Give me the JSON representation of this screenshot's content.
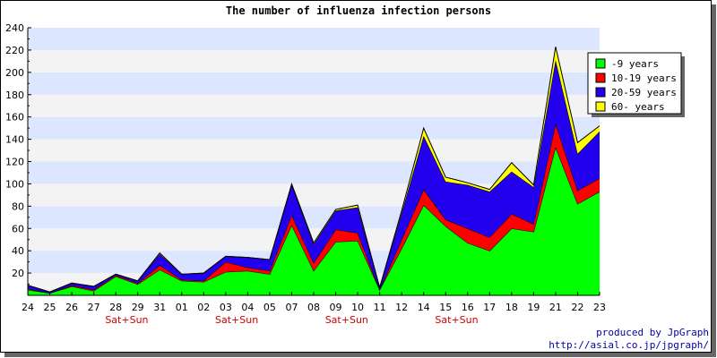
{
  "chart_data": {
    "type": "area",
    "stacked": true,
    "title": "The number of influenza infection persons",
    "categories": [
      "24",
      "25",
      "26",
      "27",
      "28",
      "29",
      "31",
      "01",
      "02",
      "03",
      "04",
      "05",
      "07",
      "08",
      "09",
      "10",
      "11",
      "12",
      "14",
      "15",
      "16",
      "17",
      "18",
      "19",
      "21",
      "22",
      "23"
    ],
    "weekend_label": "Sat+Sun",
    "weekend_positions": [
      5,
      10,
      15,
      20
    ],
    "ylim": [
      0,
      240
    ],
    "yticks": [
      20,
      40,
      60,
      80,
      100,
      120,
      140,
      160,
      180,
      200,
      220,
      240
    ],
    "grid": "horizontal bands",
    "legend_position": "top-right",
    "series": [
      {
        "name": "-9 years",
        "color": "#00ff00",
        "values": [
          5,
          2,
          8,
          4,
          17,
          10,
          23,
          13,
          12,
          21,
          22,
          19,
          63,
          22,
          48,
          49,
          5,
          42,
          81,
          62,
          47,
          40,
          60,
          57,
          133,
          82,
          93
        ]
      },
      {
        "name": "10-19 years",
        "color": "#ff0000",
        "values": [
          1,
          0,
          1,
          1,
          1,
          1,
          4,
          1,
          1,
          9,
          3,
          3,
          9,
          7,
          11,
          7,
          0,
          8,
          14,
          6,
          13,
          12,
          13,
          7,
          21,
          12,
          12
        ]
      },
      {
        "name": "20-59 years",
        "color": "#2200ee",
        "values": [
          3,
          1,
          2,
          3,
          1,
          2,
          10,
          5,
          7,
          5,
          9,
          10,
          27,
          17,
          17,
          23,
          2,
          24,
          48,
          34,
          39,
          41,
          38,
          33,
          57,
          33,
          42
        ]
      },
      {
        "name": "60- years",
        "color": "#ffff00",
        "values": [
          0,
          0,
          0,
          0,
          0,
          0,
          1,
          0,
          0,
          0,
          0,
          0,
          1,
          1,
          1,
          2,
          0,
          2,
          7,
          4,
          2,
          2,
          8,
          2,
          12,
          10,
          5
        ]
      }
    ]
  },
  "credits": {
    "line1": "produced by JpGraph",
    "line2": "http://asial.co.jp/jpgraph/"
  }
}
